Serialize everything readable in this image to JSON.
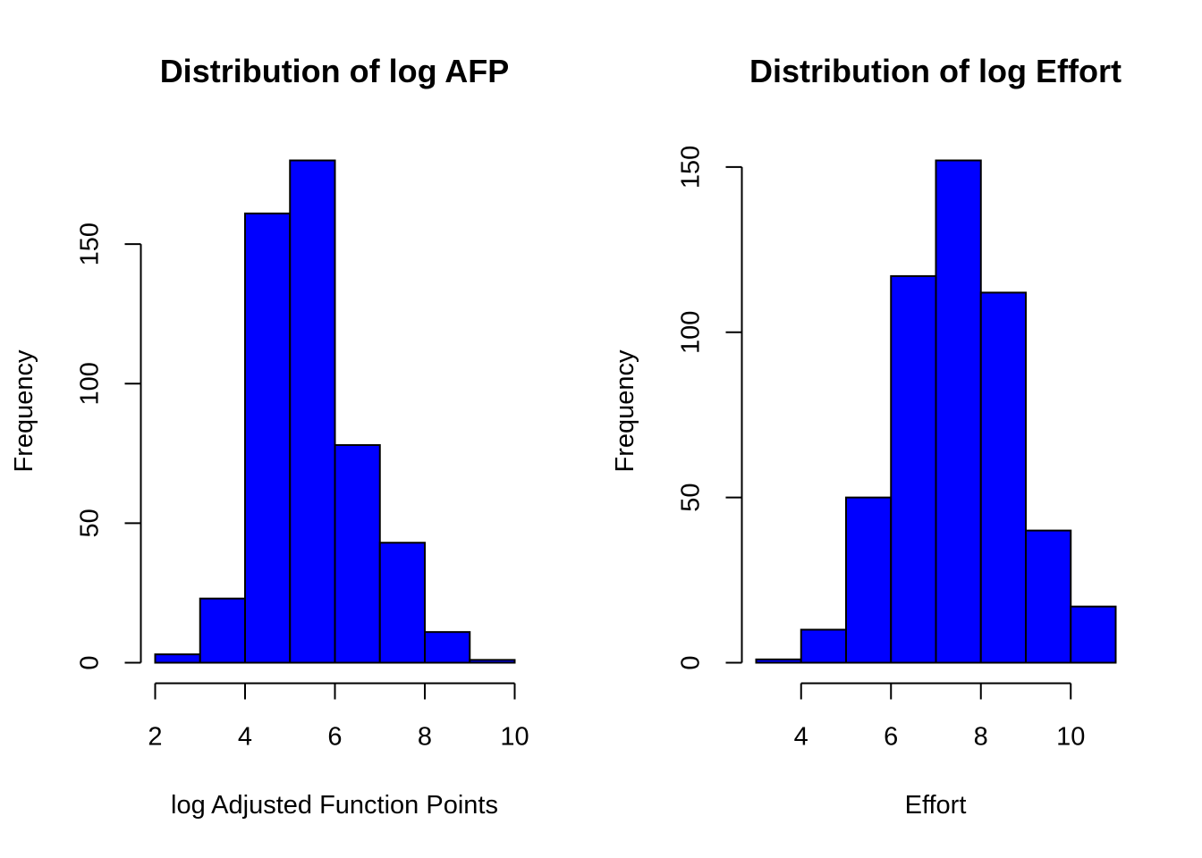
{
  "chart_data": [
    {
      "type": "bar",
      "title": "Distribution of log AFP",
      "xlabel": "log Adjusted Function Points",
      "ylabel": "Frequency",
      "bins": [
        [
          2,
          3
        ],
        [
          3,
          4
        ],
        [
          4,
          5
        ],
        [
          5,
          6
        ],
        [
          6,
          7
        ],
        [
          7,
          8
        ],
        [
          8,
          9
        ],
        [
          9,
          10
        ]
      ],
      "values": [
        3,
        23,
        161,
        180,
        78,
        43,
        11,
        1
      ],
      "xlim": [
        2,
        10
      ],
      "ylim": [
        0,
        180
      ],
      "xticks": [
        2,
        4,
        6,
        8,
        10
      ],
      "yticks": [
        0,
        50,
        100,
        150
      ],
      "bar_color": "#0000ff",
      "edge_color": "#000000",
      "grid": false
    },
    {
      "type": "bar",
      "title": "Distribution of log Effort",
      "xlabel": "Effort",
      "ylabel": "Frequency",
      "bins": [
        [
          3,
          4
        ],
        [
          4,
          5
        ],
        [
          5,
          6
        ],
        [
          6,
          7
        ],
        [
          7,
          8
        ],
        [
          8,
          9
        ],
        [
          9,
          10
        ],
        [
          10,
          11
        ]
      ],
      "values": [
        1,
        10,
        50,
        117,
        152,
        112,
        40,
        17
      ],
      "xlim": [
        3,
        11
      ],
      "ylim": [
        0,
        152
      ],
      "xticks": [
        4,
        6,
        8,
        10
      ],
      "yticks": [
        0,
        50,
        100,
        150
      ],
      "bar_color": "#0000ff",
      "edge_color": "#000000",
      "grid": false
    }
  ]
}
